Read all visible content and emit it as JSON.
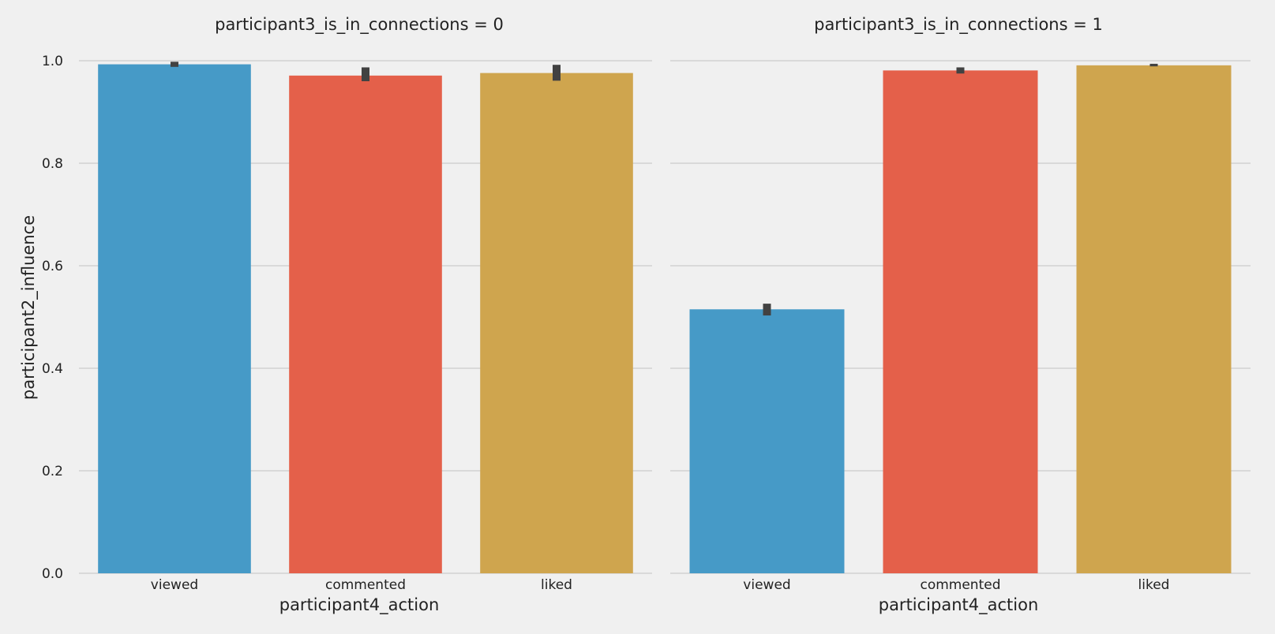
{
  "chart_data": {
    "type": "bar",
    "ylabel": "participant2_influence",
    "xlabel": "participant4_action",
    "ylim": [
      0,
      1.0
    ],
    "yticks": [
      "0.0",
      "0.2",
      "0.4",
      "0.6",
      "0.8",
      "1.0"
    ],
    "grid": "horizontal",
    "colors": {
      "background": "#f0f0f0",
      "grid": "#cbcbcb",
      "errorbar": "#424242",
      "viewed": "#469ac7",
      "commented": "#e4604a",
      "liked": "#cfa54e"
    },
    "panels": [
      {
        "title": "participant3_is_in_connections = 0",
        "categories": [
          "viewed",
          "commented",
          "liked"
        ],
        "values": [
          0.993,
          0.971,
          0.976
        ],
        "error_low": [
          0.988,
          0.96,
          0.961
        ],
        "error_high": [
          0.998,
          0.987,
          0.992
        ]
      },
      {
        "title": "participant3_is_in_connections = 1",
        "categories": [
          "viewed",
          "commented",
          "liked"
        ],
        "values": [
          0.515,
          0.981,
          0.991
        ],
        "error_low": [
          0.503,
          0.975,
          0.989
        ],
        "error_high": [
          0.526,
          0.987,
          0.994
        ]
      }
    ]
  }
}
